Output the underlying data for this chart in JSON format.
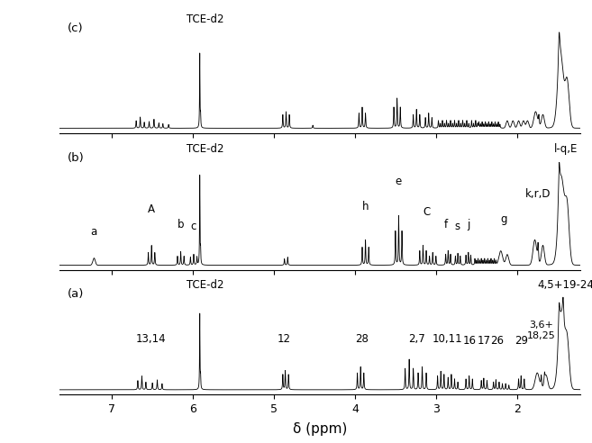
{
  "xlabel": "δ (ppm)",
  "background_color": "#ffffff",
  "line_color": "#000000",
  "font_size": 8.5,
  "tick_font_size": 9,
  "xticks": [
    7.0,
    6.0,
    5.0,
    4.0,
    3.0,
    2.0
  ],
  "xlim_left": 7.65,
  "xlim_right": 1.22
}
